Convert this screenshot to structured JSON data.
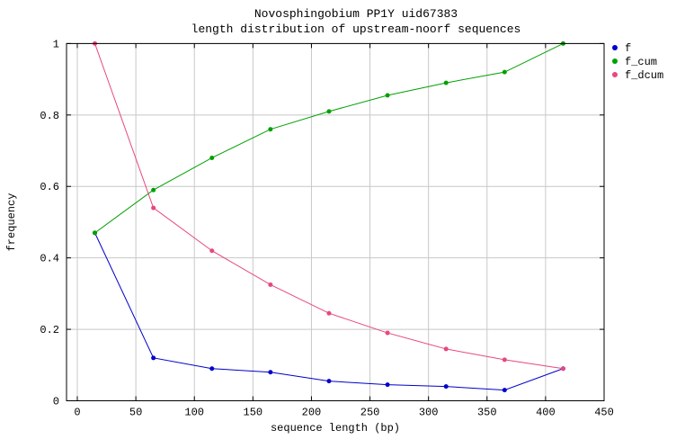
{
  "chart_data": {
    "type": "line",
    "title": "Novosphingobium PP1Y uid67383",
    "subtitle": "length distribution of upstream-noorf sequences",
    "xlabel": "sequence length (bp)",
    "ylabel": "frequency",
    "xlim": [
      0,
      450
    ],
    "ylim": [
      0,
      1
    ],
    "x_ticks": [
      0,
      50,
      100,
      150,
      200,
      250,
      300,
      350,
      400,
      450
    ],
    "y_ticks": [
      0,
      0.2,
      0.4,
      0.6,
      0.8,
      1
    ],
    "grid": true,
    "legend_position": "outside-top-right",
    "x": [
      15,
      65,
      115,
      165,
      215,
      265,
      315,
      365,
      415
    ],
    "series": [
      {
        "name": "f",
        "color": "#0000cc",
        "values": [
          0.47,
          0.12,
          0.09,
          0.08,
          0.055,
          0.045,
          0.04,
          0.03,
          0.09
        ]
      },
      {
        "name": "f_cum",
        "color": "#00a000",
        "values": [
          0.47,
          0.59,
          0.68,
          0.76,
          0.81,
          0.855,
          0.89,
          0.92,
          1.0
        ]
      },
      {
        "name": "f_dcum",
        "color": "#e8477f",
        "values": [
          1.0,
          0.54,
          0.42,
          0.325,
          0.245,
          0.19,
          0.145,
          0.115,
          0.09
        ]
      }
    ]
  },
  "style": {
    "grid_color": "#c8c8c8",
    "border_color": "#000000",
    "background": "#ffffff"
  }
}
